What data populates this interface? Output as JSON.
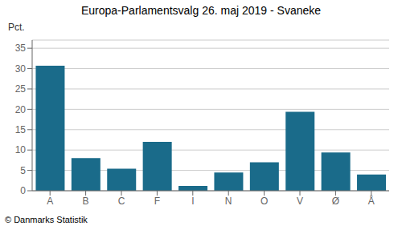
{
  "chart_data": {
    "type": "bar",
    "title": "Europa-Parlamentsvalg 26. maj 2019 - Svaneke",
    "ylabel": "Pct.",
    "footer": "© Danmarks Statistik",
    "categories": [
      "A",
      "B",
      "C",
      "F",
      "I",
      "N",
      "O",
      "V",
      "Ø",
      "Å"
    ],
    "values": [
      30.7,
      8.0,
      5.4,
      12.0,
      1.2,
      4.5,
      7.0,
      19.4,
      9.4,
      4.0
    ],
    "color": "#1a6b8a",
    "ylim": [
      0,
      37
    ],
    "yticks": [
      0,
      5,
      10,
      15,
      20,
      25,
      30,
      35
    ],
    "grid": true
  }
}
